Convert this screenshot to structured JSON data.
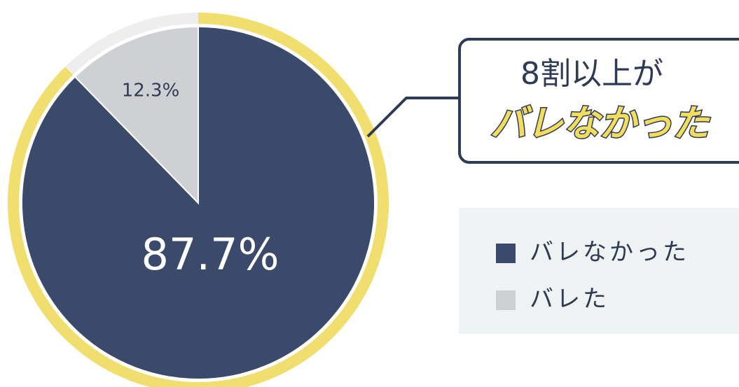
{
  "chart_data": {
    "type": "pie",
    "categories": [
      "バレなかった",
      "バレた"
    ],
    "values": [
      87.7,
      12.3
    ],
    "value_labels": [
      "87.7%",
      "12.3%"
    ],
    "colors": [
      "#3b4a6b",
      "#cfd0d4"
    ],
    "annotations": [
      "8割以上が",
      "バレなかった"
    ],
    "legend": "right"
  }
}
